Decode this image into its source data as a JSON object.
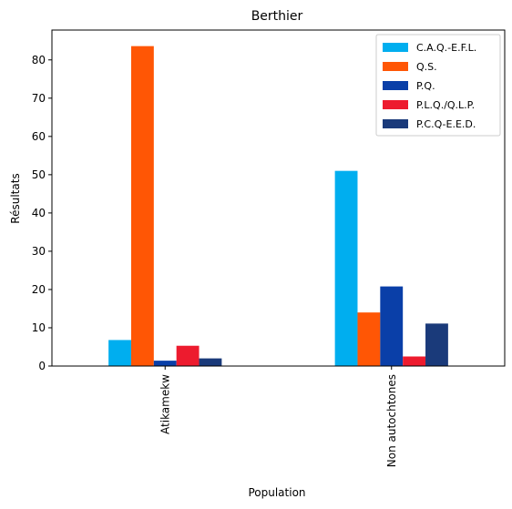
{
  "chart_data": {
    "type": "bar",
    "title": "Berthier",
    "xlabel": "Population",
    "ylabel": "Résultats",
    "categories": [
      "Atikamekw",
      "Non autochtones"
    ],
    "series": [
      {
        "name": "C.A.Q.-E.F.L.",
        "color": "#00AEEF",
        "values": [
          6.8,
          51.0
        ]
      },
      {
        "name": "Q.S.",
        "color": "#FF5605",
        "values": [
          83.6,
          14.0
        ]
      },
      {
        "name": "P.Q.",
        "color": "#0A3FA8",
        "values": [
          1.4,
          20.8
        ]
      },
      {
        "name": "P.L.Q./Q.L.P.",
        "color": "#ED1B2E",
        "values": [
          5.3,
          2.5
        ]
      },
      {
        "name": "P.C.Q-E.E.D.",
        "color": "#1A3A7A",
        "values": [
          2.0,
          11.1
        ]
      }
    ],
    "ylim": [
      0,
      87.8
    ],
    "yticks": [
      0,
      10,
      20,
      30,
      40,
      50,
      60,
      70,
      80
    ],
    "grid": false,
    "legend_position": "top-right"
  }
}
